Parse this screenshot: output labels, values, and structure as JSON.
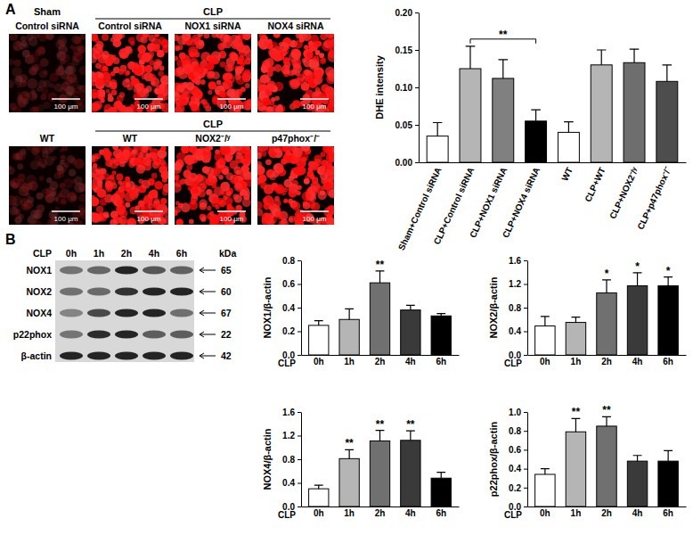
{
  "figure": {
    "panels": [
      "A",
      "B"
    ],
    "micrographs": {
      "scale_bar": "100 μm",
      "rows": [
        {
          "groups": [
            {
              "header": "Sham",
              "labels": [
                "Control siRNA"
              ]
            },
            {
              "header": "CLP",
              "labels": [
                "Control siRNA",
                "NOX1 siRNA",
                "NOX4 siRNA"
              ]
            }
          ]
        },
        {
          "groups": [
            {
              "labels": [
                "WT"
              ]
            },
            {
              "header": "CLP",
              "labels": [
                "WT",
                "NOX2⁻/ʸ",
                "p47phox⁻/⁻"
              ]
            }
          ]
        }
      ]
    },
    "blot": {
      "title": "CLP",
      "lanes": [
        "0h",
        "1h",
        "2h",
        "4h",
        "6h"
      ],
      "unit": "kDa",
      "rows": [
        {
          "label": "NOX1",
          "kda": 65
        },
        {
          "label": "NOX2",
          "kda": 60
        },
        {
          "label": "NOX4",
          "kda": 67
        },
        {
          "label": "p22phox",
          "kda": 22
        },
        {
          "label": "β-actin",
          "kda": 42
        }
      ]
    }
  },
  "chart_data": [
    {
      "type": "bar",
      "y_label": "DHE intensity",
      "categories": [
        "Sham+Control siRNA",
        "CLP+Control siRNA",
        "CLP+NOX1 siRNA",
        "CLP+NOX4 siRNA",
        "WT",
        "CLP+WT",
        "CLP+NOX2⁻/ʸ",
        "CLP+p47phox⁻/⁻"
      ],
      "values": [
        0.035,
        0.125,
        0.112,
        0.055,
        0.04,
        0.13,
        0.133,
        0.108
      ],
      "errors": [
        0.018,
        0.03,
        0.025,
        0.015,
        0.014,
        0.02,
        0.018,
        0.022
      ],
      "colors": [
        "#ffffff",
        "#b5b5b5",
        "#808080",
        "#000000",
        "#ffffff",
        "#b5b5b5",
        "#6e6e6e",
        "#4d4d4d"
      ],
      "ylim": [
        0,
        0.2
      ],
      "yticks": [
        {
          "value": 0,
          "label": "0.00"
        },
        {
          "value": 0.05,
          "label": "0.05"
        },
        {
          "value": 0.1,
          "label": "0.10"
        },
        {
          "value": 0.15,
          "label": "0.15"
        },
        {
          "value": 0.2,
          "label": "0.20"
        }
      ],
      "annotations": [
        {
          "text": "**",
          "x": [
            "CLP+Control siRNA",
            "CLP+NOX4 siRNA"
          ]
        }
      ]
    },
    {
      "type": "bar",
      "y_label": "NOX1/β-actin",
      "x_label": "CLP",
      "categories": [
        "0h",
        "1h",
        "2h",
        "4h",
        "6h"
      ],
      "values": [
        0.25,
        0.3,
        0.61,
        0.38,
        0.33
      ],
      "errors": [
        0.04,
        0.09,
        0.1,
        0.04,
        0.02
      ],
      "colors": [
        "#ffffff",
        "#b5b5b5",
        "#707070",
        "#3a3a3a",
        "#000000"
      ],
      "ylim": [
        0,
        0.8
      ],
      "yticks": [
        {
          "value": 0,
          "label": "0.0"
        },
        {
          "value": 0.2,
          "label": "0.2"
        },
        {
          "value": 0.4,
          "label": "0.4"
        },
        {
          "value": 0.6,
          "label": "0.6"
        },
        {
          "value": 0.8,
          "label": "0.8"
        }
      ],
      "annotations": [
        {
          "text": "**",
          "x": "2h"
        }
      ]
    },
    {
      "type": "bar",
      "y_label": "NOX2/β-actin",
      "x_label": "CLP",
      "categories": [
        "0h",
        "1h",
        "2h",
        "4h",
        "6h"
      ],
      "values": [
        0.49,
        0.55,
        1.05,
        1.17,
        1.17
      ],
      "errors": [
        0.16,
        0.09,
        0.22,
        0.22,
        0.15
      ],
      "colors": [
        "#ffffff",
        "#b5b5b5",
        "#707070",
        "#3a3a3a",
        "#000000"
      ],
      "ylim": [
        0,
        1.6
      ],
      "yticks": [
        {
          "value": 0,
          "label": "0.0"
        },
        {
          "value": 0.4,
          "label": "0.4"
        },
        {
          "value": 0.8,
          "label": "0.8"
        },
        {
          "value": 1.2,
          "label": "1.2"
        },
        {
          "value": 1.6,
          "label": "1.6"
        }
      ],
      "annotations": [
        {
          "text": "*",
          "x": "2h"
        },
        {
          "text": "*",
          "x": "4h"
        },
        {
          "text": "*",
          "x": "6h"
        }
      ]
    },
    {
      "type": "bar",
      "y_label": "NOX4/β-actin",
      "x_label": "CLP",
      "categories": [
        "0h",
        "1h",
        "2h",
        "4h",
        "6h"
      ],
      "values": [
        0.3,
        0.81,
        1.11,
        1.12,
        0.48
      ],
      "errors": [
        0.06,
        0.15,
        0.18,
        0.16,
        0.1
      ],
      "colors": [
        "#ffffff",
        "#b5b5b5",
        "#707070",
        "#3a3a3a",
        "#000000"
      ],
      "ylim": [
        0,
        1.6
      ],
      "yticks": [
        {
          "value": 0,
          "label": "0.0"
        },
        {
          "value": 0.4,
          "label": "0.4"
        },
        {
          "value": 0.8,
          "label": "0.8"
        },
        {
          "value": 1.2,
          "label": "1.2"
        },
        {
          "value": 1.6,
          "label": "1.6"
        }
      ],
      "annotations": [
        {
          "text": "**",
          "x": "1h"
        },
        {
          "text": "**",
          "x": "2h"
        },
        {
          "text": "**",
          "x": "4h"
        }
      ]
    },
    {
      "type": "bar",
      "y_label": "p22phox/β-actin",
      "x_label": "CLP",
      "categories": [
        "0h",
        "1h",
        "2h",
        "4h",
        "6h"
      ],
      "values": [
        0.34,
        0.79,
        0.85,
        0.48,
        0.48
      ],
      "errors": [
        0.06,
        0.14,
        0.1,
        0.06,
        0.11
      ],
      "colors": [
        "#ffffff",
        "#b5b5b5",
        "#707070",
        "#3a3a3a",
        "#000000"
      ],
      "ylim": [
        0,
        1.0
      ],
      "yticks": [
        {
          "value": 0,
          "label": "0.0"
        },
        {
          "value": 0.2,
          "label": "0.2"
        },
        {
          "value": 0.4,
          "label": "0.4"
        },
        {
          "value": 0.6,
          "label": "0.6"
        },
        {
          "value": 0.8,
          "label": "0.8"
        },
        {
          "value": 1.0,
          "label": "1.0"
        }
      ],
      "annotations": [
        {
          "text": "**",
          "x": "1h"
        },
        {
          "text": "**",
          "x": "2h"
        }
      ]
    }
  ]
}
